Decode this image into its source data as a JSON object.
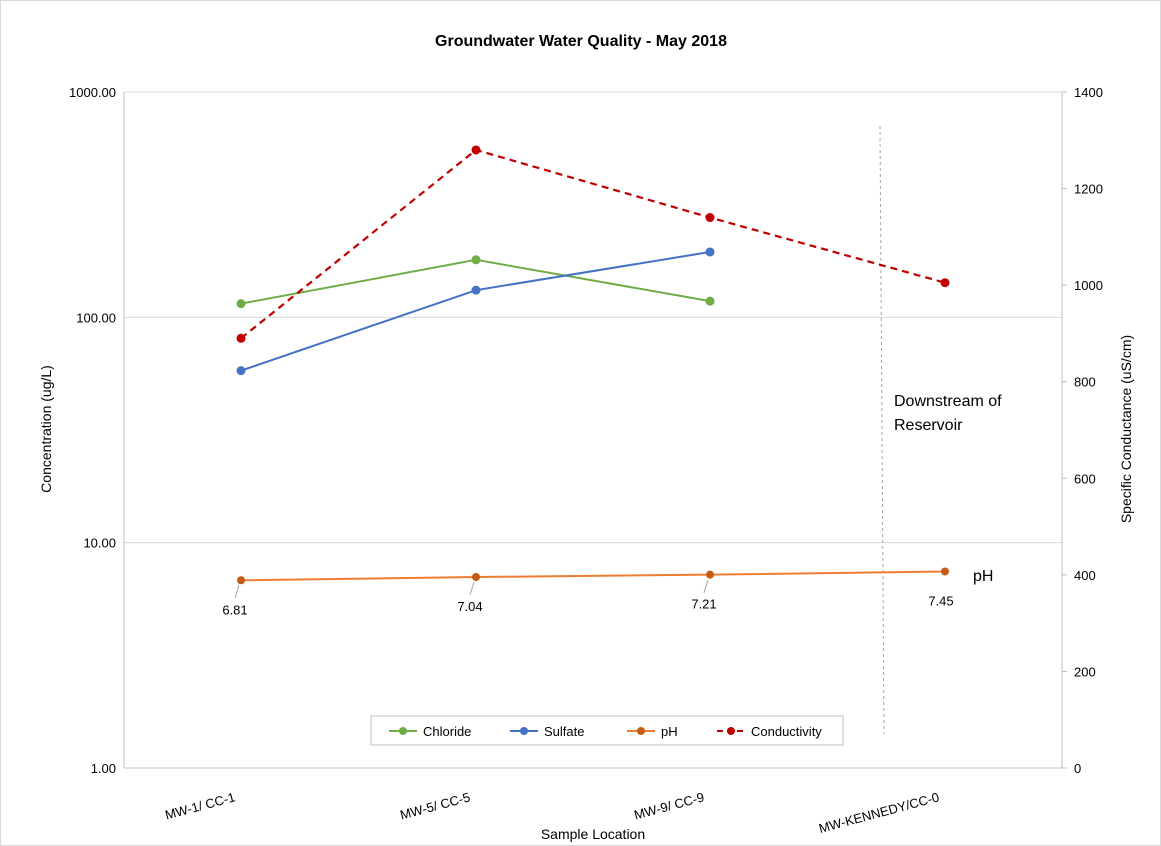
{
  "chart_data": {
    "type": "line",
    "title": "Groundwater Water Quality - May 2018",
    "xlabel": "Sample Location",
    "ylabel": "Concentration (ug/L)",
    "y2label": "Specific Conductance (uS/cm)",
    "categories": [
      "MW-1/ CC-1",
      "MW-5/ CC-5",
      "MW-9/ CC-9",
      "MW-KENNEDY/CC-0"
    ],
    "yscale": "log",
    "ylim": [
      1,
      1000
    ],
    "y_ticks": [
      "1.00",
      "10.00",
      "100.00",
      "1000.00"
    ],
    "y2lim": [
      0,
      1400
    ],
    "y2_ticks": [
      "0",
      "200",
      "400",
      "600",
      "800",
      "1000",
      "1200",
      "1400"
    ],
    "grid": "horizontal major gridlines on primary axis",
    "legend_position": "bottom-center inside plot",
    "series": [
      {
        "name": "Chloride",
        "axis": "primary",
        "color": "#70ad47",
        "style": "solid",
        "values": [
          115,
          180,
          118,
          null
        ]
      },
      {
        "name": "Sulfate",
        "axis": "primary",
        "color": "#4472c4",
        "style": "solid",
        "values": [
          58,
          132,
          195,
          null
        ]
      },
      {
        "name": "pH",
        "axis": "primary",
        "color": "#ed7d31",
        "marker_color": "#c55a11",
        "style": "solid",
        "values": [
          6.81,
          7.04,
          7.21,
          7.45
        ],
        "data_labels": [
          "6.81",
          "7.04",
          "7.21",
          "7.45"
        ]
      },
      {
        "name": "Conductivity",
        "axis": "secondary",
        "color": "#c00000",
        "style": "dashed",
        "values": [
          890,
          1280,
          1140,
          1005
        ]
      }
    ],
    "annotations": [
      {
        "text_lines": [
          "Downstream of",
          "Reservoir"
        ]
      },
      {
        "text": "pH"
      }
    ]
  }
}
